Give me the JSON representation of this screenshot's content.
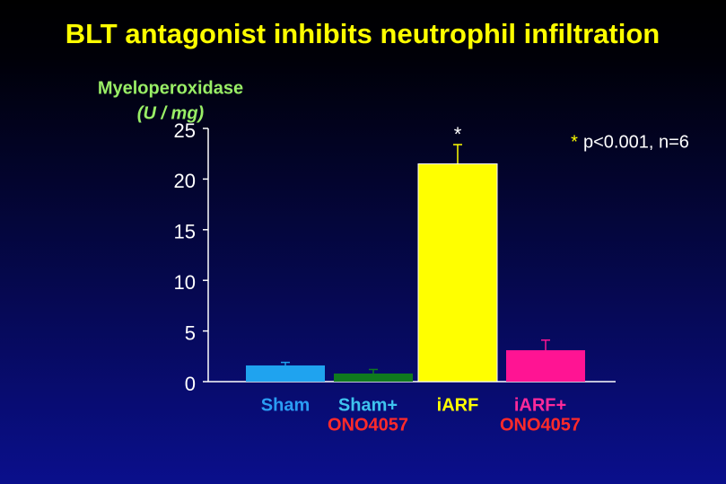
{
  "chart_data": {
    "type": "bar",
    "title": "BLT antagonist inhibits neutrophil infiltration",
    "y_label": "Myeloperoxidase",
    "y_unit": "(U / mg)",
    "categories": [
      [
        "Sham"
      ],
      [
        "Sham+",
        "ONO4057"
      ],
      [
        "iARF"
      ],
      [
        "iARF+",
        "ONO4057"
      ]
    ],
    "label_colors": [
      [
        "#2a9df4"
      ],
      [
        "#3fc3ee",
        "#ff2a2a"
      ],
      [
        "#ffff00"
      ],
      [
        "#ff2a9a",
        "#ff2a2a"
      ]
    ],
    "values": [
      1.6,
      0.8,
      21.5,
      3.1
    ],
    "errors": [
      0.3,
      0.4,
      1.9,
      1.0
    ],
    "colors": [
      "#1fa3ef",
      "#0f7a1e",
      "#ffff00",
      "#ff1493"
    ],
    "significance": [
      "",
      "",
      "*",
      ""
    ],
    "annotation_marker": "*",
    "annotation": "p<0.001, n=6",
    "ylim": [
      0,
      25
    ],
    "yticks": [
      0,
      5,
      10,
      15,
      20,
      25
    ],
    "grid": false
  }
}
